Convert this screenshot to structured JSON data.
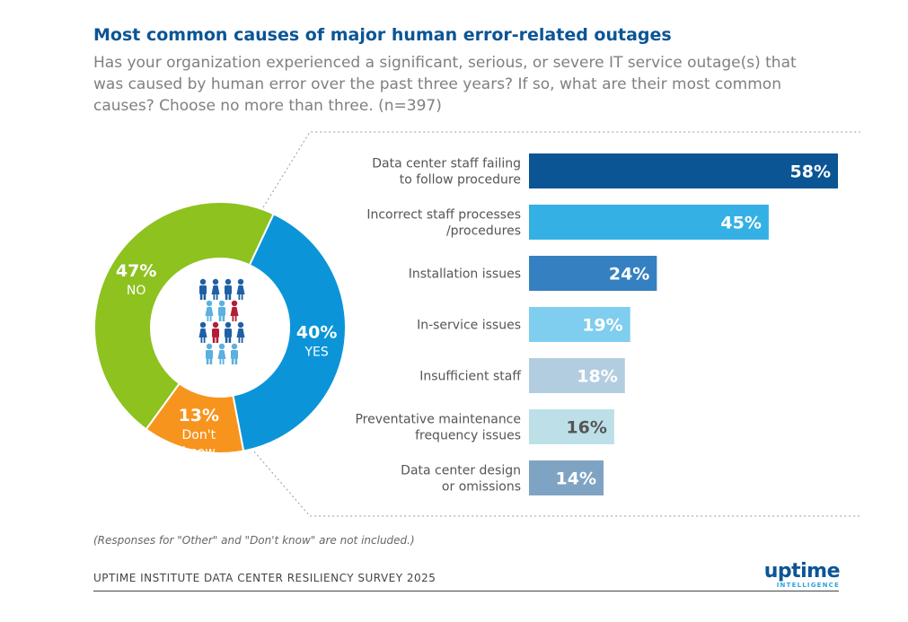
{
  "title": "Most common causes of major human error-related outages",
  "subtitle": "Has your organization experienced a significant, serious, or severe IT service outage(s) that was caused by human error over the past three years? If so, what are their most common causes? Choose no more than three. (n=397)",
  "footnote": "(Responses for \"Other\" and \"Don't know\" are not included.)",
  "source": "UPTIME INSTITUTE DATA CENTER RESILIENCY SURVEY 2025",
  "logo": {
    "word": "uptime",
    "sub": "INTELLIGENCE"
  },
  "people_icon_colors": [
    "#1f5fa6",
    "#5ab0e0",
    "#b01f38"
  ],
  "chart_data": [
    {
      "type": "pie",
      "donut": true,
      "slices": [
        {
          "label": "YES",
          "value": 40,
          "display": "40%",
          "color": "#0b95d8"
        },
        {
          "label": "Don't know",
          "value": 13,
          "display": "13%",
          "color": "#f7941d"
        },
        {
          "label": "NO",
          "value": 47,
          "display": "47%",
          "color": "#8dc21f"
        }
      ]
    },
    {
      "type": "bar",
      "orientation": "horizontal",
      "xlim": [
        0,
        58
      ],
      "categories": [
        [
          "Data center staff failing",
          "to follow procedure"
        ],
        [
          "Incorrect staff processes",
          "/procedures"
        ],
        [
          "Installation issues"
        ],
        [
          "In-service issues"
        ],
        [
          "Insufficient staff"
        ],
        [
          "Preventative maintenance",
          "frequency issues"
        ],
        [
          "Data center design",
          "or omissions"
        ]
      ],
      "values": [
        58,
        45,
        24,
        19,
        18,
        16,
        14
      ],
      "labels": [
        "58%",
        "45%",
        "24%",
        "19%",
        "18%",
        "16%",
        "14%"
      ],
      "colors": [
        "#0b5595",
        "#35b0e5",
        "#3580c0",
        "#7fcdef",
        "#b3cde0",
        "#bde0e8",
        "#7fa3c3"
      ],
      "label_colors": [
        "#ffffff",
        "#ffffff",
        "#ffffff",
        "#ffffff",
        "#ffffff",
        "#555555",
        "#ffffff"
      ]
    }
  ]
}
